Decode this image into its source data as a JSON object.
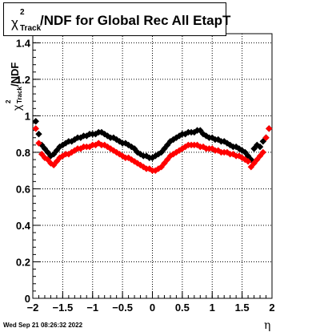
{
  "chart_data": {
    "type": "scatter",
    "title_symbol": "χ",
    "title_sup": "2",
    "title_sub": "Track",
    "title_rest": "/NDF for Global Rec All EtapT",
    "ylabel_rest": "/NDF",
    "xlabel": "η",
    "xlim": [
      -2,
      2
    ],
    "ylim": [
      0,
      1.45
    ],
    "x_ticks": [
      -2,
      -1.5,
      -1,
      -0.5,
      0,
      0.5,
      1,
      1.5,
      2
    ],
    "x_tick_labels": [
      "−2",
      "−1.5",
      "−1",
      "−0.5",
      "0",
      "0.5",
      "1",
      "1.5",
      "2"
    ],
    "y_ticks": [
      0,
      0.2,
      0.4,
      0.6,
      0.8,
      1,
      1.2,
      1.4
    ],
    "y_tick_labels": [
      "0",
      "0.2",
      "0.4",
      "0.6",
      "0.8",
      "1",
      "1.2",
      "1.4"
    ],
    "grid": true,
    "x": [
      -1.95,
      -1.9,
      -1.85,
      -1.8,
      -1.75,
      -1.7,
      -1.65,
      -1.6,
      -1.55,
      -1.5,
      -1.45,
      -1.4,
      -1.35,
      -1.3,
      -1.25,
      -1.2,
      -1.15,
      -1.1,
      -1.05,
      -1,
      -0.95,
      -0.9,
      -0.85,
      -0.8,
      -0.75,
      -0.7,
      -0.65,
      -0.6,
      -0.55,
      -0.5,
      -0.45,
      -0.4,
      -0.35,
      -0.3,
      -0.25,
      -0.2,
      -0.15,
      -0.1,
      -0.05,
      0,
      0.05,
      0.1,
      0.15,
      0.2,
      0.25,
      0.3,
      0.35,
      0.4,
      0.45,
      0.5,
      0.55,
      0.6,
      0.65,
      0.7,
      0.75,
      0.8,
      0.85,
      0.9,
      0.95,
      1,
      1.05,
      1.1,
      1.15,
      1.2,
      1.25,
      1.3,
      1.35,
      1.4,
      1.45,
      1.5,
      1.55,
      1.6,
      1.65,
      1.7,
      1.75,
      1.8,
      1.85,
      1.9,
      1.95
    ],
    "series": [
      {
        "color": "#000000",
        "marker": "diamond",
        "values": [
          0.97,
          0.9,
          0.84,
          0.82,
          0.8,
          0.78,
          0.79,
          0.81,
          0.83,
          0.84,
          0.85,
          0.86,
          0.86,
          0.87,
          0.88,
          0.88,
          0.89,
          0.89,
          0.9,
          0.9,
          0.9,
          0.91,
          0.91,
          0.9,
          0.89,
          0.88,
          0.88,
          0.87,
          0.86,
          0.85,
          0.85,
          0.84,
          0.83,
          0.82,
          0.8,
          0.79,
          0.78,
          0.78,
          0.77,
          0.77,
          0.78,
          0.79,
          0.8,
          0.82,
          0.84,
          0.86,
          0.87,
          0.88,
          0.89,
          0.9,
          0.9,
          0.91,
          0.91,
          0.91,
          0.92,
          0.92,
          0.9,
          0.89,
          0.88,
          0.88,
          0.87,
          0.87,
          0.86,
          0.86,
          0.85,
          0.84,
          0.83,
          0.83,
          0.82,
          0.81,
          0.8,
          0.78,
          0.76,
          0.82,
          0.84,
          0.83,
          0.86,
          0.88,
          0.93
        ]
      },
      {
        "color": "#ff0000",
        "marker": "diamond",
        "values": [
          0.93,
          0.85,
          0.79,
          0.77,
          0.76,
          0.74,
          0.73,
          0.75,
          0.77,
          0.78,
          0.79,
          0.79,
          0.8,
          0.81,
          0.82,
          0.82,
          0.83,
          0.83,
          0.83,
          0.84,
          0.84,
          0.85,
          0.84,
          0.84,
          0.83,
          0.82,
          0.81,
          0.8,
          0.79,
          0.78,
          0.77,
          0.77,
          0.76,
          0.75,
          0.74,
          0.73,
          0.72,
          0.71,
          0.71,
          0.7,
          0.7,
          0.71,
          0.72,
          0.74,
          0.76,
          0.78,
          0.79,
          0.8,
          0.81,
          0.82,
          0.83,
          0.84,
          0.84,
          0.84,
          0.84,
          0.83,
          0.83,
          0.82,
          0.82,
          0.82,
          0.81,
          0.81,
          0.8,
          0.8,
          0.8,
          0.79,
          0.79,
          0.78,
          0.78,
          0.77,
          0.76,
          0.75,
          0.72,
          0.74,
          0.76,
          0.78,
          0.8,
          0.88,
          0.93
        ]
      }
    ]
  },
  "footer": {
    "datestamp": "Wed Sep 21 08:26:32 2022"
  }
}
